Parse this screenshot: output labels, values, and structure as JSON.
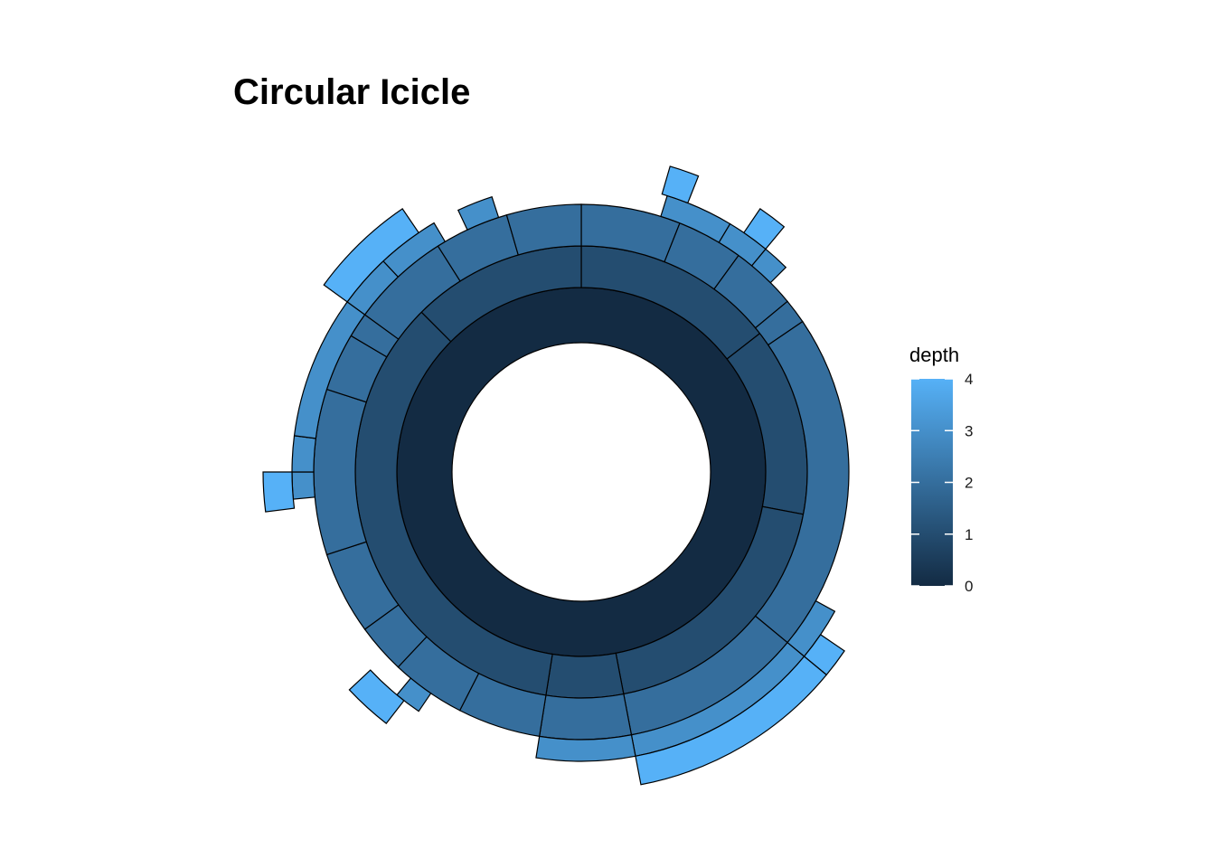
{
  "chart_data": {
    "type": "sunburst",
    "title": "Circular Icicle",
    "legend": {
      "title": "depth",
      "position": "right",
      "ticks": [
        "0",
        "1",
        "2",
        "3",
        "4"
      ],
      "min": 0,
      "max": 4,
      "color_low": "#132B43",
      "color_high": "#56B1F7"
    },
    "levels": [
      {
        "depth": 0,
        "segments": [
          [
            0,
            1
          ]
        ]
      },
      {
        "depth": 1,
        "segments": [
          [
            0,
            0.145
          ],
          [
            0.145,
            0.28
          ],
          [
            0.28,
            0.47
          ],
          [
            0.47,
            0.525
          ],
          [
            0.525,
            0.875
          ],
          [
            0.875,
            1
          ]
        ]
      },
      {
        "depth": 2,
        "segments": [
          [
            0,
            0.06
          ],
          [
            0.06,
            0.1
          ],
          [
            0.1,
            0.14
          ],
          [
            0.14,
            0.155
          ],
          [
            0.155,
            0.36
          ],
          [
            0.36,
            0.47
          ],
          [
            0.47,
            0.525
          ],
          [
            0.525,
            0.575
          ],
          [
            0.575,
            0.62
          ],
          [
            0.62,
            0.65
          ],
          [
            0.65,
            0.7
          ],
          [
            0.7,
            0.8
          ],
          [
            0.8,
            0.835
          ],
          [
            0.835,
            0.85
          ],
          [
            0.85,
            0.91
          ],
          [
            0.91,
            0.955
          ],
          [
            0.955,
            1
          ]
        ]
      },
      {
        "depth": 3,
        "segments": [
          [
            0.048,
            0.086
          ],
          [
            0.086,
            0.11
          ],
          [
            0.11,
            0.125
          ],
          [
            0.33,
            0.36
          ],
          [
            0.36,
            0.47
          ],
          [
            0.47,
            0.525
          ],
          [
            0.595,
            0.61
          ],
          [
            0.735,
            0.75
          ],
          [
            0.75,
            0.77
          ],
          [
            0.77,
            0.85
          ],
          [
            0.85,
            0.88
          ],
          [
            0.88,
            0.915
          ],
          [
            0.93,
            0.95
          ]
        ]
      },
      {
        "depth": 4,
        "segments": [
          [
            0.045,
            0.06
          ],
          [
            0.095,
            0.11
          ],
          [
            0.345,
            0.36
          ],
          [
            0.36,
            0.47
          ],
          [
            0.605,
            0.63
          ],
          [
            0.73,
            0.75
          ],
          [
            0.85,
            0.905
          ]
        ]
      }
    ]
  }
}
